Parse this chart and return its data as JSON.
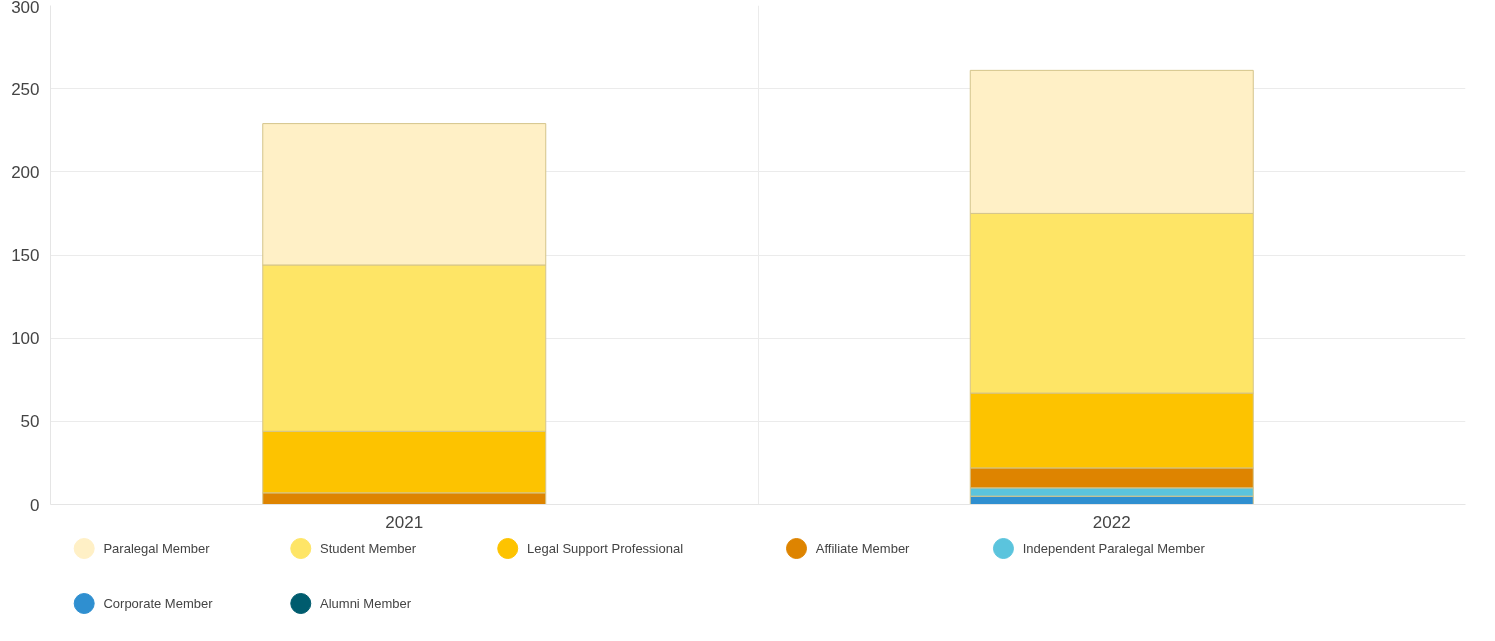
{
  "chart_data": {
    "type": "bar",
    "stacked": true,
    "categories": [
      "2021",
      "2022"
    ],
    "series": [
      {
        "name": "Alumni Member",
        "color": "#005c6e",
        "values": [
          null,
          null
        ]
      },
      {
        "name": "Corporate Member",
        "color": "#2f8fd0",
        "values": [
          null,
          5
        ]
      },
      {
        "name": "Independent Paralegal Member",
        "color": "#5bc4dd",
        "values": [
          0,
          5
        ]
      },
      {
        "name": "Affiliate Member",
        "color": "#de8400",
        "values": [
          7,
          12
        ]
      },
      {
        "name": "Legal Support Professional",
        "color": "#fdc300",
        "values": [
          37,
          45
        ]
      },
      {
        "name": "Student Member",
        "color": "#fee566",
        "values": [
          100,
          108
        ]
      },
      {
        "name": "Paralegal Member",
        "color": "#fff0c6",
        "values": [
          85,
          86
        ]
      }
    ],
    "ylim": [
      0,
      300
    ],
    "yticks": [
      0,
      50,
      100,
      150,
      200,
      250,
      300
    ],
    "grid": true,
    "legend": "bottom"
  }
}
